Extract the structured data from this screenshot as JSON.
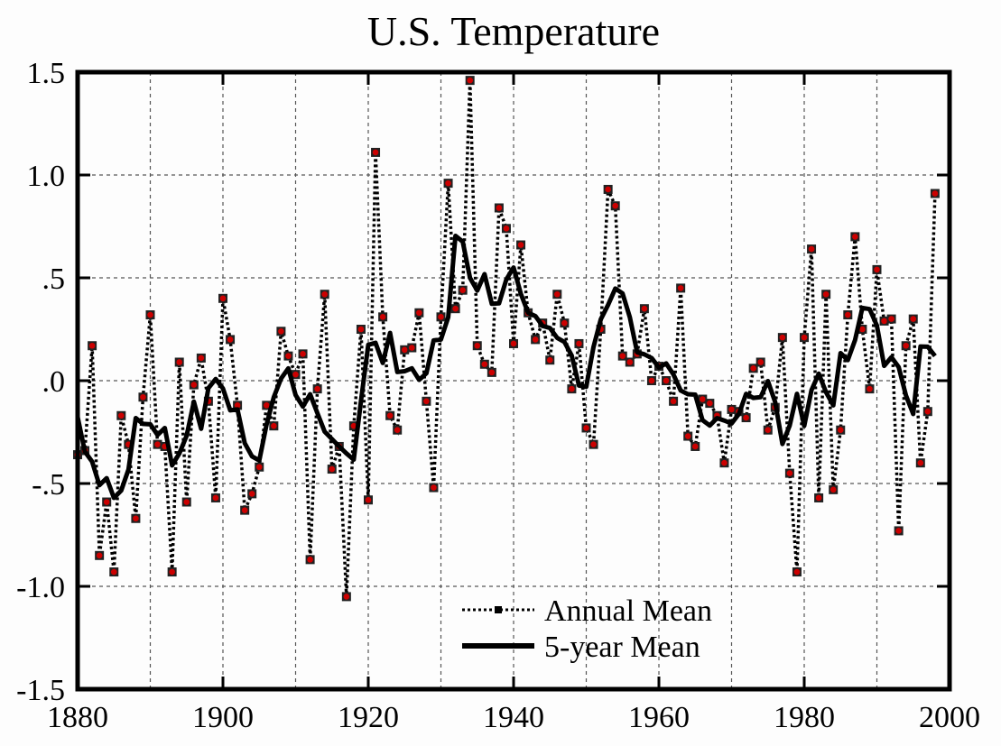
{
  "chart_data": {
    "type": "line",
    "title": "U.S. Temperature",
    "xlabel": "",
    "ylabel": "",
    "xlim": [
      1880,
      2000
    ],
    "ylim": [
      -1.5,
      1.5
    ],
    "xticks": [
      1880,
      1900,
      1920,
      1940,
      1960,
      1980,
      2000
    ],
    "xtick_labels": [
      "1880",
      "1900",
      "1920",
      "1940",
      "1960",
      "1980",
      "2000"
    ],
    "x_minor_gridlines": [
      1890,
      1910,
      1930,
      1950,
      1970,
      1990
    ],
    "yticks": [
      -1.5,
      -1.0,
      -0.5,
      0.0,
      0.5,
      1.0,
      1.5
    ],
    "ytick_labels": [
      "-1.5",
      "-1.0",
      "-.5",
      ".0",
      ".5",
      "1.0",
      "1.5"
    ],
    "grid": true,
    "legend_position": "bottom-center",
    "legend": [
      "Annual Mean",
      "5-year Mean"
    ],
    "colors": {
      "marker_fill": "#cc0000",
      "line": "#000000"
    },
    "series": [
      {
        "name": "Annual Mean",
        "style": "dotted-with-square-markers",
        "x_start": 1880,
        "values": [
          -0.36,
          -0.34,
          0.17,
          -0.85,
          -0.59,
          -0.93,
          -0.17,
          -0.31,
          -0.67,
          -0.08,
          0.32,
          -0.31,
          -0.32,
          -0.93,
          0.09,
          -0.59,
          -0.02,
          0.11,
          -0.1,
          -0.57,
          0.4,
          0.2,
          -0.12,
          -0.63,
          -0.55,
          -0.42,
          -0.12,
          -0.22,
          0.24,
          0.12,
          0.03,
          0.13,
          -0.87,
          -0.04,
          0.42,
          -0.43,
          -0.32,
          -1.05,
          -0.22,
          0.25,
          -0.58,
          1.11,
          0.31,
          -0.17,
          -0.24,
          0.15,
          0.16,
          0.33,
          -0.1,
          -0.52,
          0.31,
          0.96,
          0.35,
          0.44,
          1.46,
          0.17,
          0.08,
          0.04,
          0.84,
          0.74,
          0.18,
          0.66,
          0.33,
          0.2,
          0.28,
          0.1,
          0.42,
          0.28,
          -0.04,
          0.18,
          -0.23,
          -0.31,
          0.25,
          0.93,
          0.85,
          0.12,
          0.09,
          0.13,
          0.35,
          0.0,
          0.07,
          0.0,
          -0.1,
          0.45,
          -0.27,
          -0.32,
          -0.09,
          -0.11,
          -0.17,
          -0.4,
          -0.14,
          -0.15,
          -0.18,
          0.06,
          0.09,
          -0.24,
          -0.13,
          0.21,
          -0.45,
          -0.93,
          0.21,
          0.64,
          -0.57,
          0.42,
          -0.53,
          -0.24,
          0.32,
          0.7,
          0.25,
          -0.04,
          0.54,
          0.29,
          0.3,
          -0.73,
          0.17,
          0.3,
          -0.4,
          -0.15,
          0.91
        ]
      },
      {
        "name": "5-year Mean",
        "style": "solid-thick",
        "method": "centered 5-year running mean of Annual Mean"
      }
    ]
  }
}
